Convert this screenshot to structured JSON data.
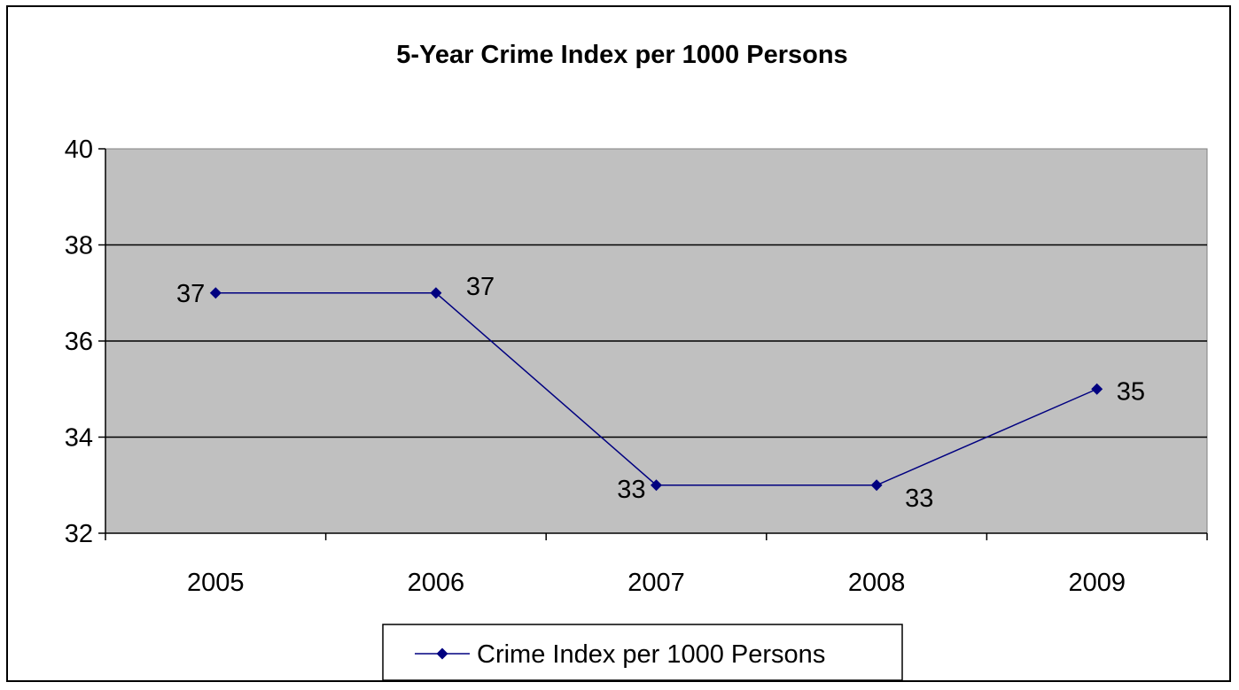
{
  "chart_data": {
    "type": "line",
    "title": "5-Year Crime Index per 1000 Persons",
    "categories": [
      "2005",
      "2006",
      "2007",
      "2008",
      "2009"
    ],
    "series": [
      {
        "name": "Crime Index per 1000 Persons",
        "values": [
          37,
          37,
          33,
          33,
          35
        ]
      }
    ],
    "data_labels": [
      "37",
      "37",
      "33",
      "33",
      "35"
    ],
    "ylim": [
      32,
      40
    ],
    "yticks": [
      32,
      34,
      36,
      38,
      40
    ],
    "ytick_labels": [
      "32",
      "34",
      "36",
      "38",
      "40"
    ],
    "grid": true,
    "legend_position": "bottom",
    "colors": {
      "plot_background": "#c0c0c0",
      "series_line": "#000080",
      "gridlines": "#000000"
    }
  }
}
